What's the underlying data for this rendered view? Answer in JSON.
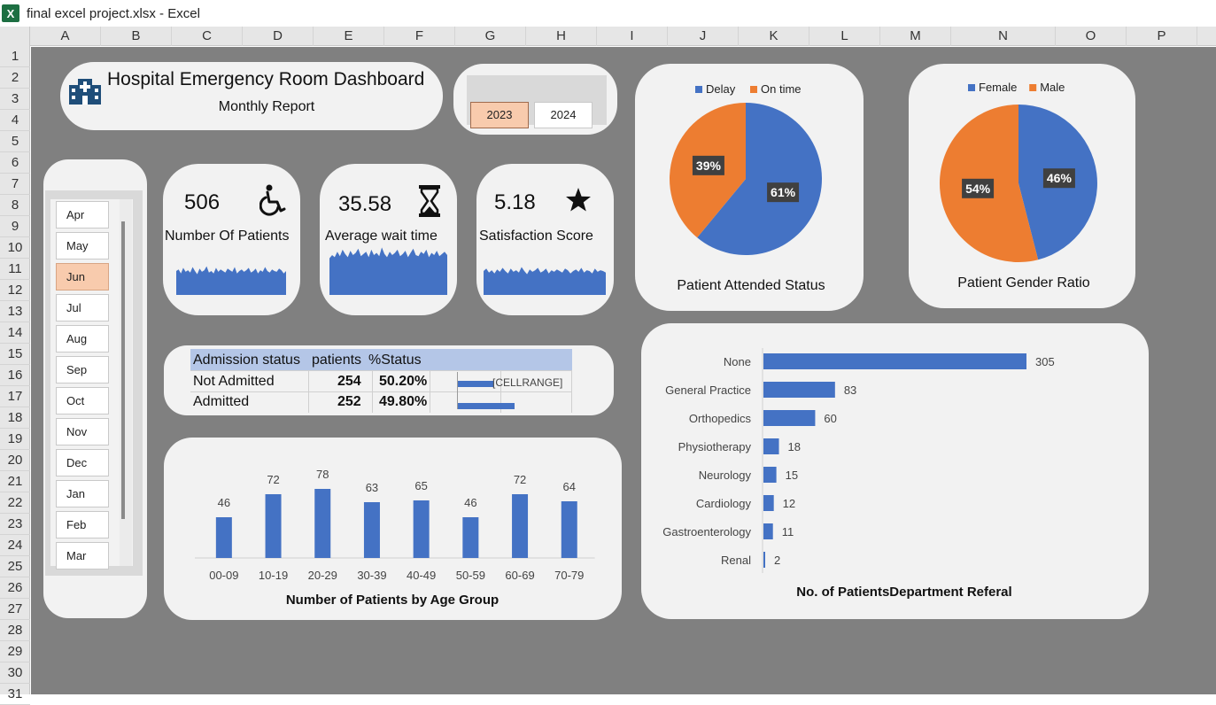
{
  "window": {
    "title": "final excel project.xlsx - Excel",
    "app_icon": "excel-icon"
  },
  "columns": [
    "A",
    "B",
    "C",
    "D",
    "E",
    "F",
    "G",
    "H",
    "I",
    "J",
    "K",
    "L",
    "M",
    "N",
    "O",
    "P"
  ],
  "rows": [
    "1",
    "2",
    "3",
    "4",
    "5",
    "6",
    "7",
    "8",
    "9",
    "10",
    "11",
    "12",
    "13",
    "14",
    "15",
    "16",
    "17",
    "18",
    "19",
    "20",
    "21",
    "22",
    "23",
    "24",
    "25",
    "26",
    "27",
    "28",
    "29",
    "30",
    "31"
  ],
  "dashboard": {
    "title": "Hospital Emergency Room Dashboard",
    "subtitle": "Monthly Report",
    "title_icon": "hospital-icon"
  },
  "years": {
    "options": [
      "2023",
      "2024"
    ],
    "selected": "2023"
  },
  "months": {
    "options": [
      "Apr",
      "May",
      "Jun",
      "Jul",
      "Aug",
      "Sep",
      "Oct",
      "Nov",
      "Dec",
      "Jan",
      "Feb",
      "Mar"
    ],
    "selected": "Jun"
  },
  "kpis": [
    {
      "value": "506",
      "label": "Number Of Patients",
      "icon": "wheelchair-icon"
    },
    {
      "value": "35.58",
      "label": "Average wait time",
      "icon": "hourglass-icon"
    },
    {
      "value": "5.18",
      "label": "Satisfaction Score",
      "icon": "star-icon"
    }
  ],
  "admission_table": {
    "headers": [
      "Admission status",
      "patients",
      "%Status"
    ],
    "rows": [
      {
        "status": "Not Admitted",
        "patients": "254",
        "pct": "50.20%",
        "bar_fraction": 0.502,
        "note": "[CELLRANGE]"
      },
      {
        "status": "Admitted",
        "patients": "252",
        "pct": "49.80%",
        "bar_fraction": 0.498,
        "note": ""
      }
    ]
  },
  "colors": {
    "blue": "#4472c4",
    "orange": "#ed7d31",
    "sheet_bg": "#808080",
    "card_bg": "#f2f2f2",
    "selected": "#f8cbad"
  },
  "chart_data": [
    {
      "type": "pie",
      "title": "Patient Attended Status",
      "legend": "top",
      "labels": [
        "Delay",
        "On time"
      ],
      "values": [
        61,
        39
      ],
      "data_labels": [
        "61%",
        "39%"
      ]
    },
    {
      "type": "pie",
      "title": "Patient Gender Ratio",
      "legend": "top",
      "labels": [
        "Female",
        "Male"
      ],
      "values": [
        46,
        54
      ],
      "data_labels": [
        "46%",
        "54%"
      ]
    },
    {
      "type": "bar",
      "title": "Number of Patients by Age Group",
      "categories": [
        "00-09",
        "10-19",
        "20-29",
        "30-39",
        "40-49",
        "50-59",
        "60-69",
        "70-79"
      ],
      "values": [
        46,
        72,
        78,
        63,
        65,
        46,
        72,
        64
      ],
      "grid": false
    },
    {
      "type": "bar",
      "orientation": "horizontal",
      "title": "No. of PatientsDepartment Referal",
      "categories": [
        "None",
        "General Practice",
        "Orthopedics",
        "Physiotherapy",
        "Neurology",
        "Cardiology",
        "Gastroenterology",
        "Renal"
      ],
      "values": [
        305,
        83,
        60,
        18,
        15,
        12,
        11,
        2
      ],
      "grid": false
    },
    {
      "type": "area",
      "title": "",
      "series": [
        {
          "values": [
            30,
            32,
            27,
            34,
            29,
            31,
            28,
            35,
            30,
            26,
            33,
            29,
            31,
            36,
            28,
            30,
            27,
            34,
            29,
            32,
            30,
            28,
            33,
            31,
            29,
            35,
            27,
            30,
            32,
            29,
            31,
            34,
            28,
            30,
            33,
            27,
            31,
            29,
            35,
            30,
            28,
            32,
            30,
            29,
            33,
            31,
            27,
            30
          ]
        },
        {
          "values": [
            52,
            55,
            53,
            58,
            54,
            60,
            56,
            53,
            59,
            55,
            57,
            61,
            54,
            56,
            58,
            53,
            60,
            55,
            57,
            54,
            62,
            56,
            53,
            58,
            55,
            57,
            60,
            54,
            56,
            59,
            53,
            57,
            61,
            55,
            54,
            58,
            56,
            60,
            53,
            57,
            55,
            59,
            54,
            56,
            58,
            55
          ]
        },
        {
          "values": [
            30,
            33,
            28,
            31,
            27,
            32,
            29,
            34,
            30,
            27,
            33,
            29,
            31,
            28,
            35,
            30,
            26,
            32,
            29,
            31,
            34,
            28,
            30,
            33,
            27,
            31,
            29,
            32,
            30,
            28,
            33,
            31,
            27,
            30,
            32,
            29,
            34,
            28,
            31,
            30,
            27,
            33,
            29,
            31,
            30,
            28
          ]
        }
      ]
    }
  ]
}
